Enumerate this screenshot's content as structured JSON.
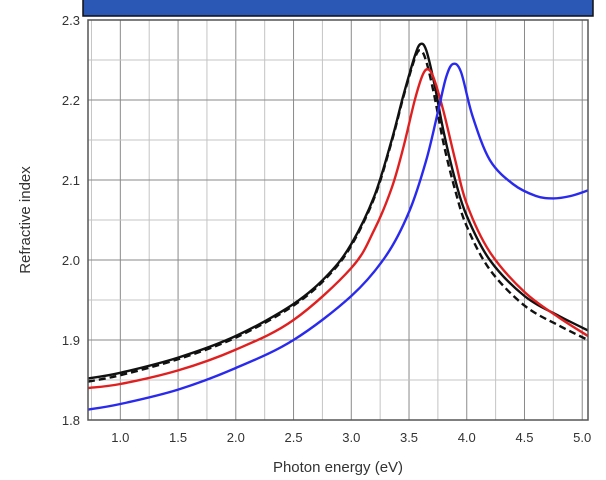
{
  "banner_color": "#2b57b5",
  "chart_data": {
    "type": "line",
    "title": "",
    "xlabel": "Photon energy (eV)",
    "ylabel": "Refractive index",
    "xlim": [
      0.72,
      5.05
    ],
    "ylim": [
      1.8,
      2.3
    ],
    "x_ticks": [
      1.0,
      1.5,
      2.0,
      2.5,
      3.0,
      3.5,
      4.0,
      4.5,
      5.0
    ],
    "x_tick_labels": [
      "1.0",
      "1.5",
      "2.0",
      "2.5",
      "3.0",
      "3.5",
      "4.0",
      "4.5",
      "5.0"
    ],
    "y_ticks": [
      1.8,
      1.9,
      2.0,
      2.1,
      2.2,
      2.3
    ],
    "y_tick_labels": [
      "1.8",
      "1.9",
      "2.0",
      "2.1",
      "2.2",
      "2.3"
    ],
    "grid": true,
    "legend": null,
    "series": [
      {
        "color": "#111111",
        "style": "solid",
        "x": [
          0.72,
          1.0,
          1.5,
          2.0,
          2.5,
          2.8,
          3.0,
          3.2,
          3.35,
          3.45,
          3.55,
          3.6,
          3.65,
          3.72,
          3.8,
          3.9,
          4.0,
          4.2,
          4.5,
          4.8,
          5.05
        ],
        "y": [
          1.852,
          1.859,
          1.878,
          1.905,
          1.945,
          1.982,
          2.02,
          2.08,
          2.15,
          2.205,
          2.255,
          2.27,
          2.262,
          2.22,
          2.16,
          2.1,
          2.055,
          2.0,
          1.955,
          1.93,
          1.912
        ]
      },
      {
        "color": "#111111",
        "style": "dashed",
        "x": [
          0.72,
          1.0,
          1.5,
          2.0,
          2.5,
          2.8,
          3.0,
          3.2,
          3.35,
          3.45,
          3.55,
          3.6,
          3.65,
          3.72,
          3.8,
          3.9,
          4.0,
          4.2,
          4.5,
          4.8,
          5.05
        ],
        "y": [
          1.848,
          1.856,
          1.876,
          1.903,
          1.943,
          1.98,
          2.018,
          2.078,
          2.148,
          2.203,
          2.252,
          2.262,
          2.248,
          2.205,
          2.145,
          2.087,
          2.042,
          1.988,
          1.943,
          1.918,
          1.9
        ]
      },
      {
        "color": "#e02020",
        "style": "solid",
        "x": [
          0.72,
          1.0,
          1.5,
          2.0,
          2.5,
          3.0,
          3.2,
          3.35,
          3.45,
          3.55,
          3.62,
          3.67,
          3.72,
          3.8,
          3.9,
          4.0,
          4.2,
          4.5,
          4.8,
          5.05
        ],
        "y": [
          1.84,
          1.845,
          1.862,
          1.888,
          1.925,
          1.99,
          2.038,
          2.09,
          2.14,
          2.2,
          2.232,
          2.238,
          2.225,
          2.185,
          2.125,
          2.07,
          2.01,
          1.96,
          1.928,
          1.905
        ]
      },
      {
        "color": "#2a2aee",
        "style": "solid",
        "x": [
          0.72,
          1.0,
          1.5,
          2.0,
          2.5,
          3.0,
          3.3,
          3.5,
          3.65,
          3.75,
          3.82,
          3.88,
          3.95,
          4.05,
          4.2,
          4.4,
          4.6,
          4.75,
          4.9,
          5.05
        ],
        "y": [
          1.813,
          1.82,
          1.838,
          1.865,
          1.9,
          1.955,
          2.005,
          2.06,
          2.125,
          2.185,
          2.228,
          2.245,
          2.235,
          2.18,
          2.125,
          2.095,
          2.08,
          2.077,
          2.08,
          2.087
        ]
      }
    ]
  }
}
